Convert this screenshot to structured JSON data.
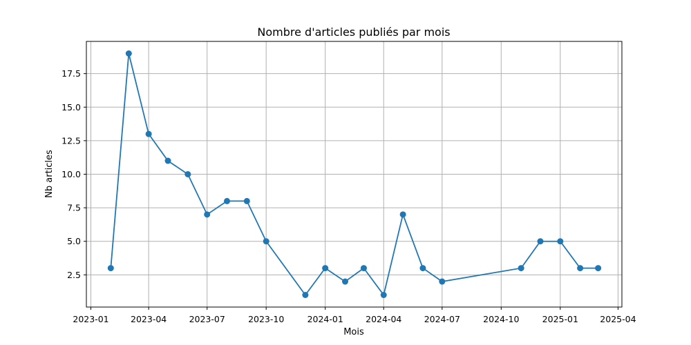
{
  "chart_data": {
    "type": "line",
    "title": "Nombre d'articles publiés par mois",
    "xlabel": "Mois",
    "ylabel": "Nb articles",
    "grid": true,
    "color": "#1f77b4",
    "x_type": "date",
    "xlim": [
      "2022-12-25",
      "2025-04-07"
    ],
    "ylim": [
      0.1,
      19.9
    ],
    "x_ticks": [
      "2023-01",
      "2023-04",
      "2023-07",
      "2023-10",
      "2024-01",
      "2024-04",
      "2024-07",
      "2024-10",
      "2025-01",
      "2025-04"
    ],
    "y_ticks": [
      "2.5",
      "5.0",
      "7.5",
      "10.0",
      "12.5",
      "15.0",
      "17.5"
    ],
    "series": [
      {
        "x": [
          "2023-02",
          "2023-03",
          "2023-04",
          "2023-05",
          "2023-06",
          "2023-07",
          "2023-08",
          "2023-09",
          "2023-10",
          "2023-12",
          "2024-01",
          "2024-02",
          "2024-03",
          "2024-04",
          "2024-05",
          "2024-06",
          "2024-07",
          "2024-11",
          "2024-12",
          "2025-01",
          "2025-02",
          "2025-03"
        ],
        "values": [
          3,
          19,
          13,
          11,
          10,
          7,
          8,
          8,
          5,
          1,
          3,
          2,
          3,
          1,
          7,
          3,
          2,
          3,
          5,
          5,
          3,
          3
        ]
      }
    ]
  }
}
